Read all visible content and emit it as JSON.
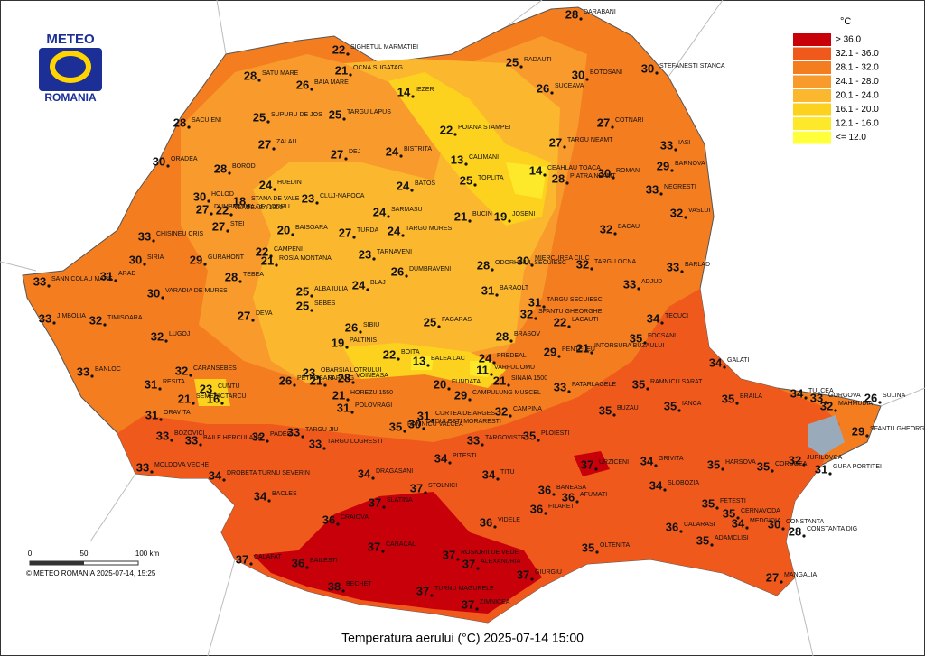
{
  "title": "Temperatura aerului (°C) 2025-07-14 15:00",
  "logo": {
    "top": "METEO",
    "bottom": "ROMANIA"
  },
  "copyright": "© METEO ROMANIA 2025-07-14, 15:25",
  "scale": {
    "ticks": [
      "0",
      "50",
      "100 km"
    ]
  },
  "legend": {
    "title": "°C",
    "items": [
      {
        "label": "> 36.0",
        "color": "#c8000a"
      },
      {
        "label": "32.1 - 36.0",
        "color": "#ef5a1c"
      },
      {
        "label": "28.1 - 32.0",
        "color": "#f47d20"
      },
      {
        "label": "24.1 - 28.0",
        "color": "#f89a2c"
      },
      {
        "label": "20.1 - 24.0",
        "color": "#fbb82e"
      },
      {
        "label": "16.1 - 20.0",
        "color": "#fcd21e"
      },
      {
        "label": "12.1 - 16.0",
        "color": "#fde82a"
      },
      {
        "label": "<= 12.0",
        "color": "#ffff3a"
      }
    ]
  },
  "stations": [
    {
      "name": "DARABANI",
      "temp": 28
    },
    {
      "name": "STEFANESTI STANCA",
      "temp": 30
    },
    {
      "name": "RADAUTI",
      "temp": 25
    },
    {
      "name": "BOTOSANI",
      "temp": 30
    },
    {
      "name": "SUCEAVA",
      "temp": 26
    },
    {
      "name": "COTNARI",
      "temp": 27
    },
    {
      "name": "IASI",
      "temp": 33
    },
    {
      "name": "TARGU NEAMT",
      "temp": 27
    },
    {
      "name": "BARNOVA",
      "temp": 29
    },
    {
      "name": "PIATRA NEAMT",
      "temp": 28
    },
    {
      "name": "ROMAN",
      "temp": 30
    },
    {
      "name": "NEGRESTI",
      "temp": 33
    },
    {
      "name": "VASLUI",
      "temp": 32
    },
    {
      "name": "BACAU",
      "temp": 32
    },
    {
      "name": "TARGU OCNA",
      "temp": 32
    },
    {
      "name": "BARLAD",
      "temp": 33
    },
    {
      "name": "ADJUD",
      "temp": 33
    },
    {
      "name": "TECUCI",
      "temp": 34
    },
    {
      "name": "FOCSANI",
      "temp": 35
    },
    {
      "name": "GALATI",
      "temp": 34
    },
    {
      "name": "TULCEA",
      "temp": 34
    },
    {
      "name": "GORGOVA",
      "temp": 33
    },
    {
      "name": "SULINA",
      "temp": 26
    },
    {
      "name": "MAHMUDIA",
      "temp": 32
    },
    {
      "name": "SFANTU GHEORGHE",
      "temp": 29
    },
    {
      "name": "JURILOVCA",
      "temp": 32
    },
    {
      "name": "GURA PORTITEI",
      "temp": 31
    },
    {
      "name": "CORUGEA",
      "temp": 35
    },
    {
      "name": "HARSOVA",
      "temp": 35
    },
    {
      "name": "BRAILA",
      "temp": 35
    },
    {
      "name": "IANCA",
      "temp": 35
    },
    {
      "name": "RAMNICU SARAT",
      "temp": 35
    },
    {
      "name": "BUZAU",
      "temp": 35
    },
    {
      "name": "PATARLAGELE",
      "temp": 33
    },
    {
      "name": "GRIVITA",
      "temp": 34
    },
    {
      "name": "SLOBOZIA",
      "temp": 34
    },
    {
      "name": "FETESTI",
      "temp": 35
    },
    {
      "name": "CERNAVODA",
      "temp": 35
    },
    {
      "name": "MEDGIDIA",
      "temp": 34
    },
    {
      "name": "CONSTANTA",
      "temp": 30
    },
    {
      "name": "CONSTANTA DIG",
      "temp": 28
    },
    {
      "name": "ADAMCLISI",
      "temp": 35
    },
    {
      "name": "MANGALIA",
      "temp": 27
    },
    {
      "name": "CALARASI",
      "temp": 36
    },
    {
      "name": "OLTENITA",
      "temp": 35
    },
    {
      "name": "VIDELE",
      "temp": 36
    },
    {
      "name": "GIURGIU",
      "temp": 37
    },
    {
      "name": "ZIMNICEA",
      "temp": 37
    },
    {
      "name": "ALEXANDRIA",
      "temp": 37
    },
    {
      "name": "TURNU MAGURELE",
      "temp": 37
    },
    {
      "name": "ROSIORII DE VEDE",
      "temp": 37
    },
    {
      "name": "CARACAL",
      "temp": 37
    },
    {
      "name": "BECHET",
      "temp": 38
    },
    {
      "name": "BAILESTI",
      "temp": 36
    },
    {
      "name": "CALAFAT",
      "temp": 37
    },
    {
      "name": "CRAIOVA",
      "temp": 36
    },
    {
      "name": "SLATINA",
      "temp": 37
    },
    {
      "name": "BACLES",
      "temp": 34
    },
    {
      "name": "DROBETA TURNU SEVERIN",
      "temp": 34
    },
    {
      "name": "DRAGASANI",
      "temp": 34
    },
    {
      "name": "STOLNICI",
      "temp": 37
    },
    {
      "name": "PITESTI",
      "temp": 34
    },
    {
      "name": "TITU",
      "temp": 34
    },
    {
      "name": "BANEASA",
      "temp": 36
    },
    {
      "name": "AFUMATI",
      "temp": 36
    },
    {
      "name": "FILARET",
      "temp": 36
    },
    {
      "name": "URZICENI",
      "temp": 37
    },
    {
      "name": "TARGOVISTE",
      "temp": 33
    },
    {
      "name": "PLOIESTI",
      "temp": 35
    },
    {
      "name": "CAMPINA",
      "temp": 32
    },
    {
      "name": "SINAIA 1500",
      "temp": 21
    },
    {
      "name": "VARFUL OMU",
      "temp": 11
    },
    {
      "name": "PREDEAL",
      "temp": 24
    },
    {
      "name": "FUNDATA",
      "temp": 20
    },
    {
      "name": "CAMPULUNG MUSCEL",
      "temp": 29
    },
    {
      "name": "CURTEA DE ARGES",
      "temp": 31
    },
    {
      "name": "RAMNICU VALCEA",
      "temp": 35
    },
    {
      "name": "DEDULESTI MORARESTI",
      "temp": 30
    },
    {
      "name": "BALEA LAC",
      "temp": 13
    },
    {
      "name": "BOITA",
      "temp": 22
    },
    {
      "name": "PALTINIS",
      "temp": 19
    },
    {
      "name": "SIBIU",
      "temp": 26
    },
    {
      "name": "FAGARAS",
      "temp": 25
    },
    {
      "name": "VOINEASA",
      "temp": 28
    },
    {
      "name": "OBARSIA LOTRULUI",
      "temp": 23
    },
    {
      "name": "PETROSANI",
      "temp": 26
    },
    {
      "name": "PARANG",
      "temp": 21
    },
    {
      "name": "HOREZU 1550",
      "temp": 21
    },
    {
      "name": "POLOVRAGI",
      "temp": 31
    },
    {
      "name": "TARGU JIU",
      "temp": 33
    },
    {
      "name": "TARGU LOGRESTI",
      "temp": 33
    },
    {
      "name": "PADES",
      "temp": 32
    },
    {
      "name": "BAILE HERCULANE",
      "temp": 33
    },
    {
      "name": "BOZOVICI",
      "temp": 33
    },
    {
      "name": "ORAVITA",
      "temp": 31
    },
    {
      "name": "MOLDOVA VECHE",
      "temp": 33
    },
    {
      "name": "SEMENIC",
      "temp": 21
    },
    {
      "name": "RESITA",
      "temp": 31
    },
    {
      "name": "CARANSEBES",
      "temp": 32
    },
    {
      "name": "CUNTU",
      "temp": 23
    },
    {
      "name": "TARCU",
      "temp": 16
    },
    {
      "name": "BANLOC",
      "temp": 33
    },
    {
      "name": "LUGOJ",
      "temp": 32
    },
    {
      "name": "TIMISOARA",
      "temp": 32
    },
    {
      "name": "JIMBOLIA",
      "temp": 33
    },
    {
      "name": "DEVA",
      "temp": 27
    },
    {
      "name": "SANNICOLAU MARE",
      "temp": 33
    },
    {
      "name": "ARAD",
      "temp": 31
    },
    {
      "name": "SIRIA",
      "temp": 30
    },
    {
      "name": "VARADIA DE MURES",
      "temp": 30
    },
    {
      "name": "GURAHONT",
      "temp": 29
    },
    {
      "name": "TEBEA",
      "temp": 28
    },
    {
      "name": "CHISINEU CRIS",
      "temp": 33
    },
    {
      "name": "DUMBRAVITA DE CODRU",
      "temp": 27
    },
    {
      "name": "STEI",
      "temp": 27
    },
    {
      "name": "HOLOD",
      "temp": 30
    },
    {
      "name": "STANA DE VALE",
      "temp": 18
    },
    {
      "name": "VLADEASA 1800",
      "temp": 22
    },
    {
      "name": "ORADEA",
      "temp": 30
    },
    {
      "name": "BOROD",
      "temp": 28
    },
    {
      "name": "HUEDIN",
      "temp": 24
    },
    {
      "name": "CLUJ-NAPOCA",
      "temp": 23
    },
    {
      "name": "SACUIENI",
      "temp": 28
    },
    {
      "name": "ZALAU",
      "temp": 27
    },
    {
      "name": "DEJ",
      "temp": 27
    },
    {
      "name": "SATU MARE",
      "temp": 28
    },
    {
      "name": "SUPURU DE JOS",
      "temp": 25
    },
    {
      "name": "BAIA MARE",
      "temp": 26
    },
    {
      "name": "SIGHETUL MARMATIEI",
      "temp": 22
    },
    {
      "name": "OCNA SUGATAG",
      "temp": 21
    },
    {
      "name": "IEZER",
      "temp": 14
    },
    {
      "name": "TARGU LAPUS",
      "temp": 25
    },
    {
      "name": "BISTRITA",
      "temp": 24
    },
    {
      "name": "POIANA STAMPEI",
      "temp": 22
    },
    {
      "name": "CALIMANI",
      "temp": 13
    },
    {
      "name": "TOPLITA",
      "temp": 25
    },
    {
      "name": "CEAHLAU TOACA",
      "temp": 14
    },
    {
      "name": "BATOS",
      "temp": 24
    },
    {
      "name": "SARMASU",
      "temp": 24
    },
    {
      "name": "BAISOARA",
      "temp": 20
    },
    {
      "name": "TURDA",
      "temp": 27
    },
    {
      "name": "TARGU MURES",
      "temp": 24
    },
    {
      "name": "BUCIN",
      "temp": 21
    },
    {
      "name": "JOSENI",
      "temp": 19
    },
    {
      "name": "CAMPENI",
      "temp": 22
    },
    {
      "name": "ROSIA MONTANA",
      "temp": 21
    },
    {
      "name": "TARNAVENI",
      "temp": 23
    },
    {
      "name": "ODORHEIUL SECUIESC",
      "temp": 28
    },
    {
      "name": "MIERCUREA CIUC",
      "temp": 30
    },
    {
      "name": "DUMBRAVENI",
      "temp": 26
    },
    {
      "name": "ALBA IULIA",
      "temp": 25
    },
    {
      "name": "SEBES",
      "temp": 25
    },
    {
      "name": "BLAJ",
      "temp": 24
    },
    {
      "name": "BARAOLT",
      "temp": 31
    },
    {
      "name": "TARGU SECUIESC",
      "temp": 31
    },
    {
      "name": "SFANTU GHEORGHE",
      "temp": 32
    },
    {
      "name": "LACAUTI",
      "temp": 22
    },
    {
      "name": "INTORSURA BUZAULUI",
      "temp": 21
    },
    {
      "name": "PENTELEU",
      "temp": 29
    },
    {
      "name": "BRASOV",
      "temp": 28
    }
  ]
}
